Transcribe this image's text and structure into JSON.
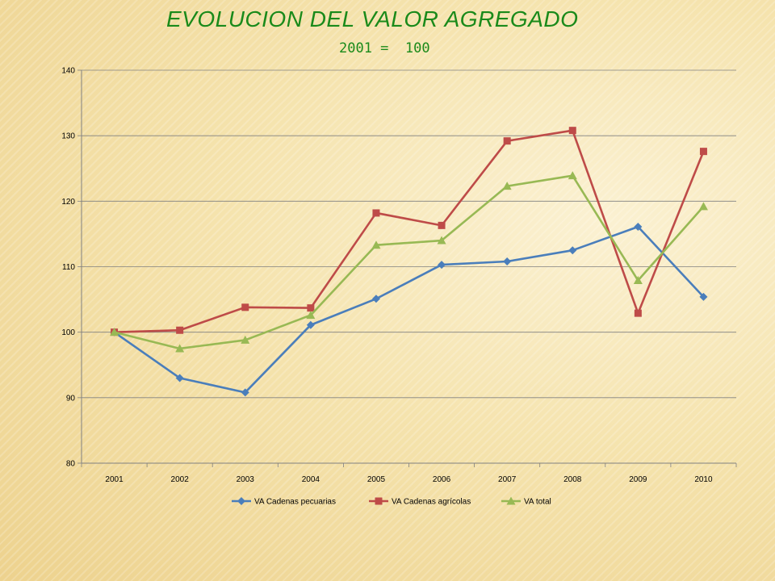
{
  "slide": {
    "title": "EVOLUCION DEL VALOR AGREGADO",
    "subtitle": "2001 =  100"
  },
  "chart_data": {
    "type": "line",
    "title": "",
    "xlabel": "",
    "ylabel": "",
    "x": [
      "2001",
      "2002",
      "2003",
      "2004",
      "2005",
      "2006",
      "2007",
      "2008",
      "2009",
      "2010"
    ],
    "ylim": [
      80,
      140
    ],
    "yticks": [
      80,
      90,
      100,
      110,
      120,
      130,
      140
    ],
    "grid": true,
    "legend_position": "bottom",
    "series": [
      {
        "name": "VA Cadenas pecuarias",
        "color": "#4a7ebb",
        "marker": "diamond",
        "values": [
          100,
          93.0,
          90.8,
          101.1,
          105.1,
          110.3,
          110.8,
          112.5,
          116.1,
          105.4
        ]
      },
      {
        "name": "VA Cadenas agrícolas",
        "color": "#be4b48",
        "marker": "square",
        "values": [
          100,
          100.3,
          103.8,
          103.7,
          118.2,
          116.3,
          129.2,
          130.8,
          102.9,
          127.6
        ]
      },
      {
        "name": "VA total",
        "color": "#98b954",
        "marker": "triangle",
        "values": [
          100,
          97.5,
          98.8,
          102.6,
          113.3,
          114.0,
          122.3,
          123.9,
          107.9,
          119.2
        ]
      }
    ]
  }
}
